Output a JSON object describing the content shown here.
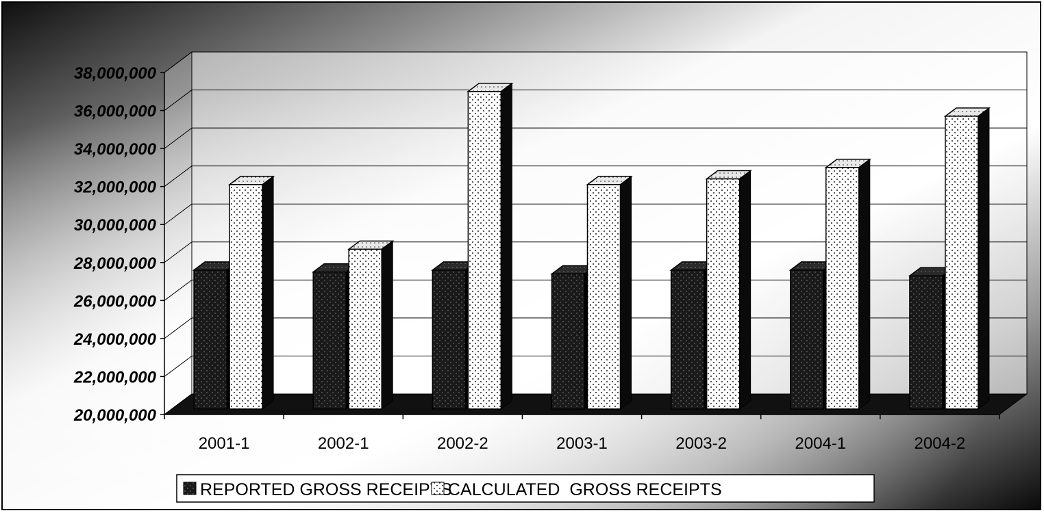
{
  "chart_data": {
    "type": "bar",
    "style": "3d-clustered-column",
    "categories": [
      "2001-1",
      "2002-1",
      "2002-2",
      "2003-1",
      "2003-2",
      "2004-1",
      "2004-2"
    ],
    "series": [
      {
        "name": "REPORTED GROSS RECEIPTS",
        "pattern": "dark-dots",
        "color": "#1a1a1a",
        "values": [
          27600000,
          27500000,
          27600000,
          27400000,
          27600000,
          27600000,
          27300000
        ]
      },
      {
        "name": "CALCULATED  GROSS RECEIPTS",
        "pattern": "light-dots",
        "color": "#ffffff",
        "values": [
          32100000,
          28700000,
          37000000,
          32100000,
          32400000,
          33000000,
          35700000
        ]
      }
    ],
    "ylim": [
      20000000,
      38000000
    ],
    "yticks": [
      "20,000,000",
      "22,000,000",
      "24,000,000",
      "26,000,000",
      "28,000,000",
      "30,000,000",
      "32,000,000",
      "34,000,000",
      "36,000,000",
      "38,000,000"
    ],
    "ytick_values": [
      20000000,
      22000000,
      24000000,
      26000000,
      28000000,
      30000000,
      32000000,
      34000000,
      36000000,
      38000000
    ],
    "grid": true,
    "legend_position": "bottom",
    "title": "",
    "xlabel": "",
    "ylabel": ""
  }
}
